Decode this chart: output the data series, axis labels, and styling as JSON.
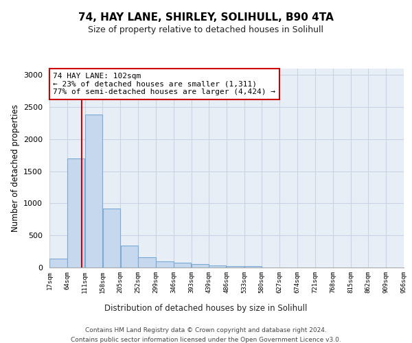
{
  "title1": "74, HAY LANE, SHIRLEY, SOLIHULL, B90 4TA",
  "title2": "Size of property relative to detached houses in Solihull",
  "xlabel": "Distribution of detached houses by size in Solihull",
  "ylabel": "Number of detached properties",
  "bins": [
    "17sqm",
    "64sqm",
    "111sqm",
    "158sqm",
    "205sqm",
    "252sqm",
    "299sqm",
    "346sqm",
    "393sqm",
    "439sqm",
    "486sqm",
    "533sqm",
    "580sqm",
    "627sqm",
    "674sqm",
    "721sqm",
    "768sqm",
    "815sqm",
    "862sqm",
    "909sqm",
    "956sqm"
  ],
  "bin_edges": [
    17,
    64,
    111,
    158,
    205,
    252,
    299,
    346,
    393,
    439,
    486,
    533,
    580,
    627,
    674,
    721,
    768,
    815,
    862,
    909,
    956
  ],
  "values": [
    140,
    1700,
    2380,
    920,
    340,
    165,
    100,
    75,
    55,
    30,
    20,
    25,
    0,
    0,
    0,
    0,
    0,
    0,
    0,
    0
  ],
  "bar_color": "#c5d8ee",
  "bar_edge_color": "#7baad4",
  "grid_color": "#c8d4e4",
  "background_color": "#e8eef6",
  "property_line_x": 102,
  "property_line_color": "#cc0000",
  "annotation_text": "74 HAY LANE: 102sqm\n← 23% of detached houses are smaller (1,311)\n77% of semi-detached houses are larger (4,424) →",
  "annotation_box_color": "#ffffff",
  "annotation_box_edge": "#cc0000",
  "ylim": [
    0,
    3100
  ],
  "yticks": [
    0,
    500,
    1000,
    1500,
    2000,
    2500,
    3000
  ],
  "footer1": "Contains HM Land Registry data © Crown copyright and database right 2024.",
  "footer2": "Contains public sector information licensed under the Open Government Licence v3.0."
}
